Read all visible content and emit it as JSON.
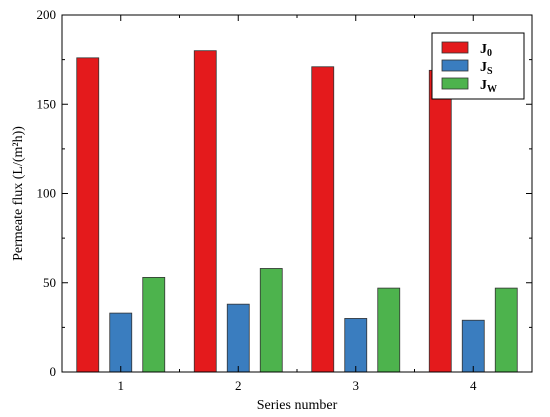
{
  "chart_data": {
    "type": "bar",
    "categories": [
      "1",
      "2",
      "3",
      "4"
    ],
    "series": [
      {
        "name": "J",
        "subscript": "0",
        "color": "#e41a1c",
        "values": [
          176,
          180,
          171,
          169
        ]
      },
      {
        "name": "J",
        "subscript": "S",
        "color": "#3a7dbf",
        "values": [
          33,
          38,
          30,
          29
        ]
      },
      {
        "name": "J",
        "subscript": "W",
        "color": "#4db34d",
        "values": [
          53,
          58,
          47,
          47
        ]
      }
    ],
    "xlabel": "Series number",
    "ylabel": "Permeate flux (L/(m²h))",
    "ylim": [
      0,
      200
    ],
    "yticks": [
      0,
      50,
      100,
      150,
      200
    ],
    "legend_position": "top-right",
    "grid": false
  }
}
